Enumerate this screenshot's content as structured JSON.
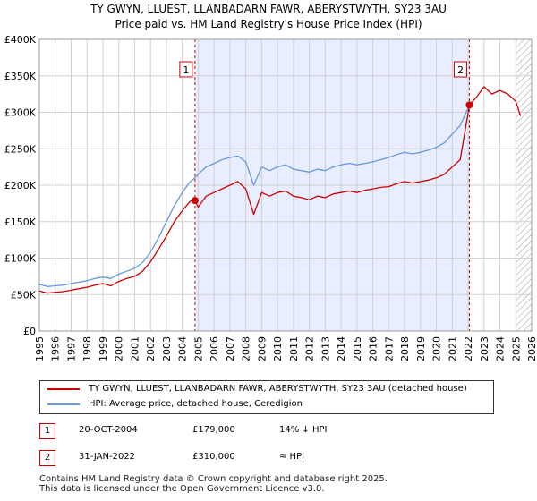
{
  "chart_data": {
    "type": "line",
    "title": "TY GWYN, LLUEST, LLANBADARN FAWR, ABERYSTWYTH, SY23 3AU",
    "subtitle": "Price paid vs. HM Land Registry's House Price Index (HPI)",
    "xlim": [
      1995,
      2026
    ],
    "ylim": [
      0,
      400000
    ],
    "x_ticks": [
      "1995",
      "1996",
      "1997",
      "1998",
      "1999",
      "2000",
      "2001",
      "2002",
      "2003",
      "2004",
      "2005",
      "2006",
      "2007",
      "2008",
      "2009",
      "2010",
      "2011",
      "2012",
      "2013",
      "2014",
      "2015",
      "2016",
      "2017",
      "2018",
      "2019",
      "2020",
      "2021",
      "2022",
      "2023",
      "2024",
      "2025",
      "2026"
    ],
    "y_ticks": [
      {
        "value": 0,
        "label": "£0"
      },
      {
        "value": 50000,
        "label": "£50K"
      },
      {
        "value": 100000,
        "label": "£100K"
      },
      {
        "value": 150000,
        "label": "£150K"
      },
      {
        "value": 200000,
        "label": "£200K"
      },
      {
        "value": 250000,
        "label": "£250K"
      },
      {
        "value": 300000,
        "label": "£300K"
      },
      {
        "value": 350000,
        "label": "£350K"
      },
      {
        "value": 400000,
        "label": "£400K"
      }
    ],
    "grid": true,
    "shaded_region": [
      2004.8,
      2022.08
    ],
    "hatched_after": 2025.0,
    "colors": {
      "price": "#cc0000",
      "hpi": "#6699dd",
      "shade": "#e8eeff",
      "grid": "#d0d0d0"
    },
    "series": [
      {
        "name": "TY GWYN, LLUEST, LLANBADARN FAWR, ABERYSTWYTH, SY23 3AU (detached house)",
        "color": "#cc0000",
        "x": [
          1995,
          1995.5,
          1996,
          1996.5,
          1997,
          1997.5,
          1998,
          1998.5,
          1999,
          1999.5,
          2000,
          2000.5,
          2001,
          2001.5,
          2002,
          2002.5,
          2003,
          2003.5,
          2004,
          2004.5,
          2004.8,
          2005,
          2005.5,
          2006,
          2006.5,
          2007,
          2007.5,
          2008,
          2008.5,
          2009,
          2009.5,
          2010,
          2010.5,
          2011,
          2011.5,
          2012,
          2012.5,
          2013,
          2013.5,
          2014,
          2014.5,
          2015,
          2015.5,
          2016,
          2016.5,
          2017,
          2017.5,
          2018,
          2018.5,
          2019,
          2019.5,
          2020,
          2020.5,
          2021,
          2021.5,
          2022.08,
          2022.5,
          2023,
          2023.5,
          2024,
          2024.5,
          2025,
          2025.3
        ],
        "values": [
          55000,
          52000,
          53000,
          54000,
          56000,
          58000,
          60000,
          63000,
          65000,
          62000,
          68000,
          72000,
          75000,
          82000,
          95000,
          112000,
          130000,
          150000,
          165000,
          178000,
          179000,
          170000,
          185000,
          190000,
          195000,
          200000,
          205000,
          195000,
          160000,
          190000,
          185000,
          190000,
          192000,
          185000,
          183000,
          180000,
          185000,
          183000,
          188000,
          190000,
          192000,
          190000,
          193000,
          195000,
          197000,
          198000,
          202000,
          205000,
          203000,
          205000,
          207000,
          210000,
          215000,
          225000,
          235000,
          310000,
          320000,
          335000,
          325000,
          330000,
          325000,
          315000,
          295000
        ]
      },
      {
        "name": "HPI: Average price, detached house, Ceredigion",
        "color": "#6699dd",
        "x": [
          1995,
          1995.5,
          1996,
          1996.5,
          1997,
          1997.5,
          1998,
          1998.5,
          1999,
          1999.5,
          2000,
          2000.5,
          2001,
          2001.5,
          2002,
          2002.5,
          2003,
          2003.5,
          2004,
          2004.5,
          2004.8,
          2005,
          2005.5,
          2006,
          2006.5,
          2007,
          2007.5,
          2008,
          2008.5,
          2009,
          2009.5,
          2010,
          2010.5,
          2011,
          2011.5,
          2012,
          2012.5,
          2013,
          2013.5,
          2014,
          2014.5,
          2015,
          2015.5,
          2016,
          2016.5,
          2017,
          2017.5,
          2018,
          2018.5,
          2019,
          2019.5,
          2020,
          2020.5,
          2021,
          2021.5,
          2022.08
        ],
        "values": [
          64000,
          61000,
          62000,
          63000,
          65000,
          67000,
          69000,
          72000,
          74000,
          72000,
          78000,
          82000,
          86000,
          94000,
          108000,
          128000,
          150000,
          172000,
          190000,
          205000,
          210000,
          215000,
          225000,
          230000,
          235000,
          238000,
          240000,
          232000,
          200000,
          225000,
          220000,
          225000,
          228000,
          222000,
          220000,
          218000,
          222000,
          220000,
          225000,
          228000,
          230000,
          228000,
          230000,
          232000,
          235000,
          238000,
          242000,
          245000,
          243000,
          245000,
          248000,
          252000,
          258000,
          270000,
          282000,
          310000
        ]
      }
    ],
    "markers": [
      {
        "label": "1",
        "x": 2004.8,
        "y": 179000
      },
      {
        "label": "2",
        "x": 2022.08,
        "y": 310000
      }
    ]
  },
  "legend": {
    "price_label": "TY GWYN, LLUEST, LLANBADARN FAWR, ABERYSTWYTH, SY23 3AU (detached house)",
    "hpi_label": "HPI: Average price, detached house, Ceredigion"
  },
  "sales": [
    {
      "num": "1",
      "date": "20-OCT-2004",
      "price": "£179,000",
      "hpi": "14% ↓ HPI"
    },
    {
      "num": "2",
      "date": "31-JAN-2022",
      "price": "£310,000",
      "hpi": "≈ HPI"
    }
  ],
  "footer": "Contains HM Land Registry data © Crown copyright and database right 2025.\nThis data is licensed under the Open Government Licence v3.0."
}
